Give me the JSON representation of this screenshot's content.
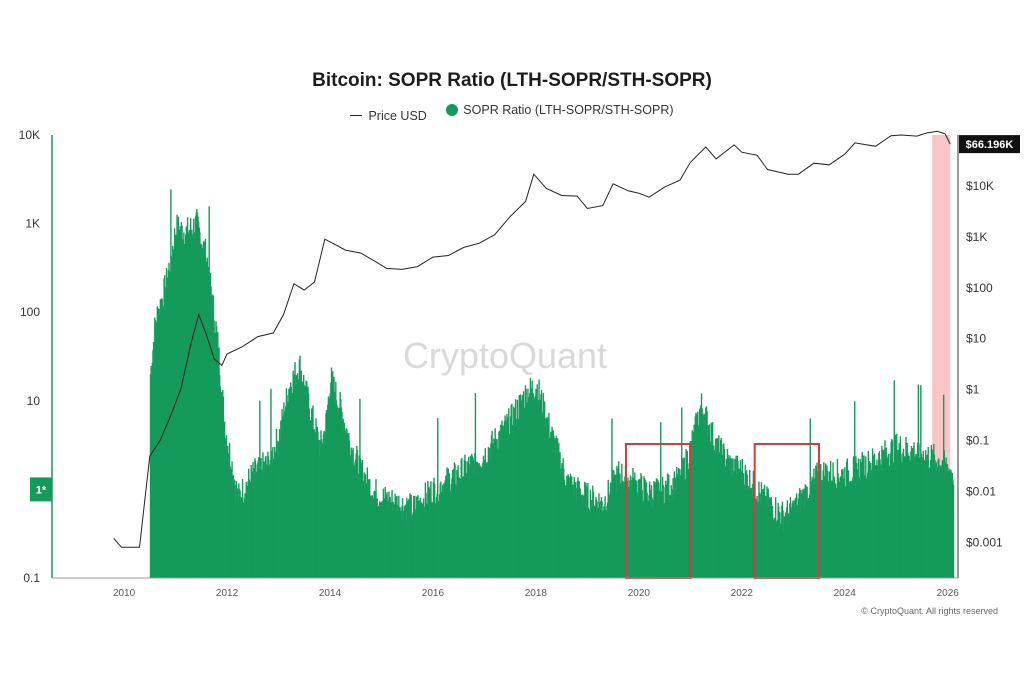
{
  "chart_data": {
    "type": "bar",
    "title": "Bitcoin: SOPR Ratio (LTH-SOPR/STH-SOPR)",
    "legend": {
      "items": [
        {
          "label": "Price USD",
          "style": "line",
          "color": "#222222"
        },
        {
          "label": "SOPR Ratio (LTH-SOPR/STH-SOPR)",
          "style": "dot",
          "color": "#159a5a"
        }
      ],
      "position": "top-center"
    },
    "left_axis": {
      "scale": "log",
      "range": [
        0.1,
        10000
      ],
      "ticks": [
        "10K",
        "1K",
        "100",
        "10",
        "1*",
        "0.1"
      ]
    },
    "right_axis": {
      "scale": "log",
      "range": [
        0.0002,
        100000
      ],
      "ticks": [
        "$10K",
        "$1K",
        "$100",
        "$10",
        "$1",
        "$0.1",
        "$0.01",
        "$0.001"
      ]
    },
    "x_axis": {
      "range": [
        2008.6,
        2026.2
      ],
      "ticks": [
        "2010",
        "2012",
        "2014",
        "2016",
        "2018",
        "2020",
        "2022",
        "2024",
        "2026"
      ]
    },
    "grid": false,
    "current_price_label": "$66.196K",
    "watermark": "CryptoQuant",
    "copyright": "© CryptoQuant. All rights reserved",
    "series": [
      {
        "name": "Price USD",
        "type": "line",
        "axis": "right",
        "color": "#222222",
        "x": [
          2009.8,
          2009.95,
          2010.3,
          2010.5,
          2010.7,
          2010.9,
          2011.1,
          2011.3,
          2011.45,
          2011.6,
          2011.75,
          2011.9,
          2012.0,
          2012.3,
          2012.6,
          2012.9,
          2013.1,
          2013.3,
          2013.5,
          2013.7,
          2013.9,
          2014.0,
          2014.3,
          2014.6,
          2014.9,
          2015.1,
          2015.4,
          2015.7,
          2016.0,
          2016.3,
          2016.6,
          2016.9,
          2017.2,
          2017.5,
          2017.8,
          2017.96,
          2018.2,
          2018.5,
          2018.8,
          2019.0,
          2019.3,
          2019.5,
          2019.8,
          2020.0,
          2020.2,
          2020.5,
          2020.8,
          2021.0,
          2021.3,
          2021.5,
          2021.85,
          2022.0,
          2022.3,
          2022.5,
          2022.9,
          2023.1,
          2023.4,
          2023.7,
          2024.0,
          2024.2,
          2024.6,
          2024.9,
          2025.1,
          2025.4,
          2025.6,
          2025.8,
          2025.95,
          2026.05
        ],
        "values": [
          0.0012,
          0.0008,
          0.0008,
          0.05,
          0.1,
          0.3,
          1,
          8,
          30,
          12,
          4,
          3,
          5,
          7,
          11,
          13,
          30,
          120,
          90,
          130,
          900,
          800,
          550,
          480,
          320,
          240,
          230,
          260,
          400,
          430,
          620,
          750,
          1100,
          2500,
          5000,
          17000,
          9000,
          6500,
          6300,
          3600,
          4100,
          11000,
          8000,
          7200,
          6000,
          9500,
          13000,
          29000,
          58000,
          34000,
          64000,
          46000,
          40000,
          21000,
          17000,
          17000,
          28000,
          26000,
          42000,
          70000,
          60000,
          97000,
          100000,
          95000,
          110000,
          118000,
          105000,
          66196
        ]
      },
      {
        "name": "SOPR Ratio (LTH-SOPR/STH-SOPR)",
        "type": "bar",
        "axis": "left",
        "color": "#159a5a",
        "x": [
          2010.5,
          2010.6,
          2010.8,
          2011.0,
          2011.2,
          2011.4,
          2011.6,
          2011.8,
          2011.95,
          2012.2,
          2012.5,
          2012.8,
          2013.0,
          2013.2,
          2013.4,
          2013.6,
          2013.8,
          2013.9,
          2014.0,
          2014.2,
          2014.4,
          2014.6,
          2014.8,
          2015.0,
          2015.3,
          2015.6,
          2016.0,
          2016.5,
          2017.0,
          2017.5,
          2017.8,
          2018.0,
          2018.3,
          2018.6,
          2019.0,
          2019.3,
          2019.6,
          2019.9,
          2020.2,
          2020.5,
          2020.8,
          2021.0,
          2021.2,
          2021.5,
          2021.8,
          2022.0,
          2022.4,
          2022.8,
          2023.0,
          2023.5,
          2024.0,
          2024.5,
          2025.0,
          2025.5,
          2025.9,
          2026.1
        ],
        "values": [
          20,
          80,
          200,
          900,
          800,
          1000,
          400,
          50,
          5,
          0.8,
          1.5,
          2,
          4,
          15,
          25,
          8,
          3,
          5,
          18,
          8,
          3,
          1.6,
          1,
          0.8,
          0.7,
          0.6,
          1,
          1.5,
          2.5,
          6,
          12,
          15,
          4,
          1.2,
          0.8,
          0.7,
          1.5,
          1.2,
          0.9,
          1.0,
          1.3,
          3,
          9,
          3,
          1.8,
          1.6,
          0.8,
          0.5,
          0.6,
          1.5,
          1.5,
          2,
          3,
          2.5,
          2,
          1.5
        ]
      }
    ],
    "highlights": [
      {
        "x_range": [
          2019.75,
          2021.0
        ],
        "style": "red-outline-box"
      },
      {
        "x_range": [
          2022.25,
          2023.5
        ],
        "style": "red-outline-box"
      },
      {
        "x_range": [
          2025.7,
          2026.05
        ],
        "style": "red-shaded-band"
      }
    ]
  }
}
